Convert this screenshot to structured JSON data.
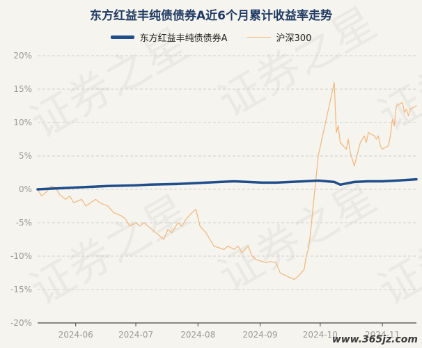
{
  "chart_data": {
    "type": "line",
    "title": "东方红益丰纯债债券A近6个月累计收益率走势",
    "ylim": [
      -20,
      20
    ],
    "yticks": [
      "20%",
      "15%",
      "10%",
      "5%",
      "0%",
      "-5%",
      "-10%",
      "-15%",
      "-20%"
    ],
    "ytick_values": [
      20,
      15,
      10,
      5,
      0,
      -5,
      -10,
      -15,
      -20
    ],
    "x_range": [
      "2024-05-13",
      "2024-11-18"
    ],
    "xticks": [
      {
        "label": "2024-06",
        "date": "2024-06-01"
      },
      {
        "label": "2024-07",
        "date": "2024-07-01"
      },
      {
        "label": "2024-08",
        "date": "2024-08-01"
      },
      {
        "label": "2024-09",
        "date": "2024-09-01"
      },
      {
        "label": "2024-10",
        "date": "2024-10-01"
      },
      {
        "label": "2024-11",
        "date": "2024-11-01"
      }
    ],
    "grid": "horizontal",
    "legend_position": "top",
    "series": [
      {
        "name": "东方红益丰纯债债券A",
        "color": "#1f4e8c",
        "points": [
          [
            "2024-05-13",
            0.0
          ],
          [
            "2024-05-20",
            0.1
          ],
          [
            "2024-05-27",
            0.2
          ],
          [
            "2024-06-03",
            0.3
          ],
          [
            "2024-06-10",
            0.4
          ],
          [
            "2024-06-17",
            0.5
          ],
          [
            "2024-06-24",
            0.55
          ],
          [
            "2024-07-01",
            0.6
          ],
          [
            "2024-07-08",
            0.7
          ],
          [
            "2024-07-15",
            0.75
          ],
          [
            "2024-07-22",
            0.8
          ],
          [
            "2024-07-29",
            0.9
          ],
          [
            "2024-08-05",
            1.0
          ],
          [
            "2024-08-12",
            1.1
          ],
          [
            "2024-08-19",
            1.2
          ],
          [
            "2024-08-26",
            1.1
          ],
          [
            "2024-09-02",
            1.0
          ],
          [
            "2024-09-09",
            1.0
          ],
          [
            "2024-09-16",
            1.1
          ],
          [
            "2024-09-23",
            1.2
          ],
          [
            "2024-09-30",
            1.3
          ],
          [
            "2024-10-08",
            1.1
          ],
          [
            "2024-10-11",
            0.7
          ],
          [
            "2024-10-18",
            1.1
          ],
          [
            "2024-10-25",
            1.2
          ],
          [
            "2024-11-01",
            1.2
          ],
          [
            "2024-11-08",
            1.3
          ],
          [
            "2024-11-18",
            1.5
          ]
        ]
      },
      {
        "name": "沪深300",
        "color": "#f2b67a",
        "points": [
          [
            "2024-05-13",
            0.0
          ],
          [
            "2024-05-15",
            -1.0
          ],
          [
            "2024-05-17",
            -0.5
          ],
          [
            "2024-05-20",
            0.5
          ],
          [
            "2024-05-22",
            0.2
          ],
          [
            "2024-05-24",
            -0.8
          ],
          [
            "2024-05-27",
            -1.5
          ],
          [
            "2024-05-29",
            -1.0
          ],
          [
            "2024-05-31",
            -2.0
          ],
          [
            "2024-06-04",
            -1.5
          ],
          [
            "2024-06-06",
            -2.5
          ],
          [
            "2024-06-11",
            -1.5
          ],
          [
            "2024-06-13",
            -2.0
          ],
          [
            "2024-06-17",
            -2.5
          ],
          [
            "2024-06-20",
            -3.5
          ],
          [
            "2024-06-24",
            -4.0
          ],
          [
            "2024-06-26",
            -4.5
          ],
          [
            "2024-06-28",
            -5.5
          ],
          [
            "2024-07-01",
            -5.0
          ],
          [
            "2024-07-03",
            -5.5
          ],
          [
            "2024-07-05",
            -5.0
          ],
          [
            "2024-07-09",
            -6.0
          ],
          [
            "2024-07-11",
            -6.5
          ],
          [
            "2024-07-15",
            -7.5
          ],
          [
            "2024-07-17",
            -6.0
          ],
          [
            "2024-07-19",
            -6.5
          ],
          [
            "2024-07-22",
            -5.0
          ],
          [
            "2024-07-24",
            -5.5
          ],
          [
            "2024-07-26",
            -4.5
          ],
          [
            "2024-07-29",
            -3.5
          ],
          [
            "2024-07-31",
            -3.0
          ],
          [
            "2024-08-02",
            -5.5
          ],
          [
            "2024-08-05",
            -6.5
          ],
          [
            "2024-08-07",
            -7.5
          ],
          [
            "2024-08-09",
            -8.5
          ],
          [
            "2024-08-12",
            -8.8
          ],
          [
            "2024-08-14",
            -9.0
          ],
          [
            "2024-08-16",
            -8.5
          ],
          [
            "2024-08-19",
            -9.0
          ],
          [
            "2024-08-21",
            -8.5
          ],
          [
            "2024-08-23",
            -9.5
          ],
          [
            "2024-08-26",
            -8.5
          ],
          [
            "2024-08-28",
            -10.0
          ],
          [
            "2024-08-30",
            -10.5
          ],
          [
            "2024-09-02",
            -10.8
          ],
          [
            "2024-09-04",
            -11.0
          ],
          [
            "2024-09-06",
            -10.8
          ],
          [
            "2024-09-09",
            -11.0
          ],
          [
            "2024-09-11",
            -12.5
          ],
          [
            "2024-09-13",
            -12.8
          ],
          [
            "2024-09-18",
            -13.5
          ],
          [
            "2024-09-20",
            -13.0
          ],
          [
            "2024-09-23",
            -12.0
          ],
          [
            "2024-09-24",
            -10.0
          ],
          [
            "2024-09-25",
            -9.0
          ],
          [
            "2024-09-26",
            -7.0
          ],
          [
            "2024-09-27",
            -4.0
          ],
          [
            "2024-09-30",
            5.0
          ],
          [
            "2024-10-08",
            16.0
          ],
          [
            "2024-10-09",
            8.5
          ],
          [
            "2024-10-10",
            9.5
          ],
          [
            "2024-10-11",
            7.0
          ],
          [
            "2024-10-14",
            6.0
          ],
          [
            "2024-10-15",
            7.5
          ],
          [
            "2024-10-16",
            5.5
          ],
          [
            "2024-10-17",
            4.5
          ],
          [
            "2024-10-18",
            3.5
          ],
          [
            "2024-10-21",
            7.0
          ],
          [
            "2024-10-22",
            7.5
          ],
          [
            "2024-10-23",
            8.0
          ],
          [
            "2024-10-24",
            7.0
          ],
          [
            "2024-10-25",
            8.5
          ],
          [
            "2024-10-28",
            8.0
          ],
          [
            "2024-10-29",
            7.5
          ],
          [
            "2024-10-30",
            8.0
          ],
          [
            "2024-10-31",
            6.5
          ],
          [
            "2024-11-01",
            6.0
          ],
          [
            "2024-11-04",
            6.5
          ],
          [
            "2024-11-05",
            8.0
          ],
          [
            "2024-11-06",
            10.5
          ],
          [
            "2024-11-07",
            9.5
          ],
          [
            "2024-11-08",
            12.5
          ],
          [
            "2024-11-11",
            13.0
          ],
          [
            "2024-11-12",
            11.5
          ],
          [
            "2024-11-13",
            12.0
          ],
          [
            "2024-11-14",
            11.0
          ],
          [
            "2024-11-15",
            12.0
          ],
          [
            "2024-11-18",
            12.5
          ]
        ]
      }
    ]
  },
  "watermark_text": "证券之星",
  "site_text": "www.365jz.com"
}
